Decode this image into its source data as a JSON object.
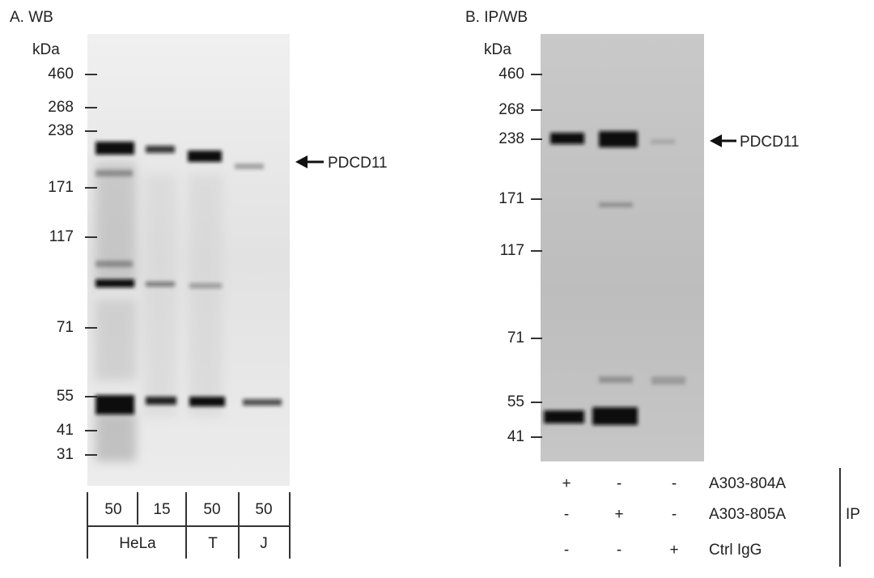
{
  "panels": [
    {
      "label": "A. WB",
      "unit": "kDa",
      "markers": [
        "460",
        "268",
        "238",
        "171",
        "117",
        "71",
        "55",
        "41",
        "31"
      ],
      "target": "PDCD11",
      "amounts": [
        "50",
        "15",
        "50",
        "50"
      ],
      "cell_lines": [
        "HeLa",
        "T",
        "J"
      ]
    },
    {
      "label": "B. IP/WB",
      "unit": "kDa",
      "markers": [
        "460",
        "268",
        "238",
        "171",
        "117",
        "71",
        "55",
        "41"
      ],
      "target": "PDCD11",
      "rows": [
        {
          "signs": [
            "+",
            "-",
            "-"
          ],
          "name": "A303-804A"
        },
        {
          "signs": [
            "-",
            "+",
            "-"
          ],
          "name": "A303-805A"
        },
        {
          "signs": [
            "-",
            "-",
            "+"
          ],
          "name": "Ctrl IgG"
        }
      ],
      "group": "IP"
    }
  ]
}
